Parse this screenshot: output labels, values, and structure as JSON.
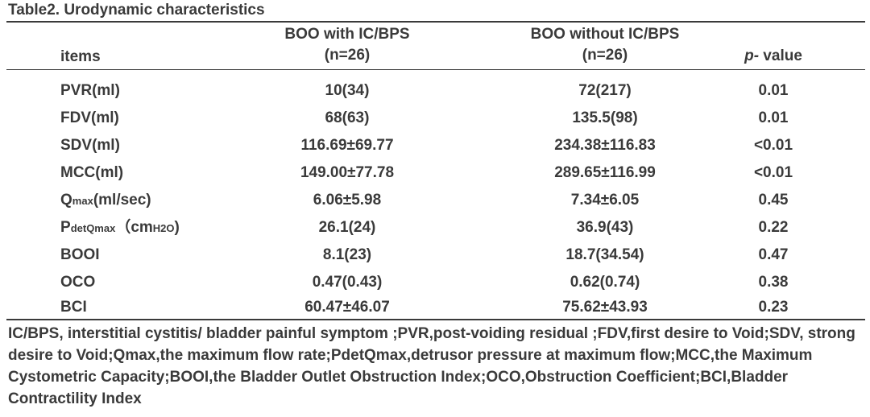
{
  "title": "Table2. Urodynamic characteristics",
  "header": {
    "items": "items",
    "group_a_line1": "BOO with IC/BPS",
    "group_a_line2": "(n=26)",
    "group_b_line1": "BOO without IC/BPS",
    "group_b_line2": "(n=26)",
    "p_prefix": "p-",
    "p_suffix": " value"
  },
  "rows": [
    {
      "item": "PVR(ml)",
      "a": "10(34)",
      "b": "72(217)",
      "p": "0.01"
    },
    {
      "item": "FDV(ml)",
      "a": "68(63)",
      "b": "135.5(98)",
      "p": "0.01"
    },
    {
      "item": "SDV(ml)",
      "a": "116.69±69.77",
      "b": "234.38±116.83",
      "p": "<0.01"
    },
    {
      "item": "MCC(ml)",
      "a": "149.00±77.78",
      "b": "289.65±116.99",
      "p": "<0.01"
    },
    {
      "item_main": "Q",
      "item_sub": "max",
      "item_rest": "(ml/sec)",
      "a": "6.06±5.98",
      "b": "7.34±6.05",
      "p": "0.45"
    },
    {
      "item_main": "P",
      "item_sub": "detQmax",
      "item_rest": "（cm",
      "item_sub2": "H2O",
      "item_end": ")",
      "a": "26.1(24)",
      "b": "36.9(43)",
      "p": "0.22"
    },
    {
      "item": "BOOI",
      "a": "8.1(23)",
      "b": "18.7(34.54)",
      "p": "0.47"
    },
    {
      "item": "OCO",
      "a": "0.47(0.43)",
      "b": "0.62(0.74)",
      "p": "0.38"
    },
    {
      "item": "BCI",
      "a": "60.47±46.07",
      "b": "75.62±43.93",
      "p": "0.23"
    }
  ],
  "footnote": "IC/BPS, interstitial cystitis/ bladder painful symptom ;PVR,post-voiding residual ;FDV,first desire to Void;SDV, strong desire to Void;Qmax,the maximum flow rate;PdetQmax,detrusor pressure at maximum flow;MCC,the Maximum Cystometric Capacity;BOOI,the Bladder Outlet Obstruction Index;OCO,Obstruction Coefficient;BCI,Bladder Contractility Index"
}
